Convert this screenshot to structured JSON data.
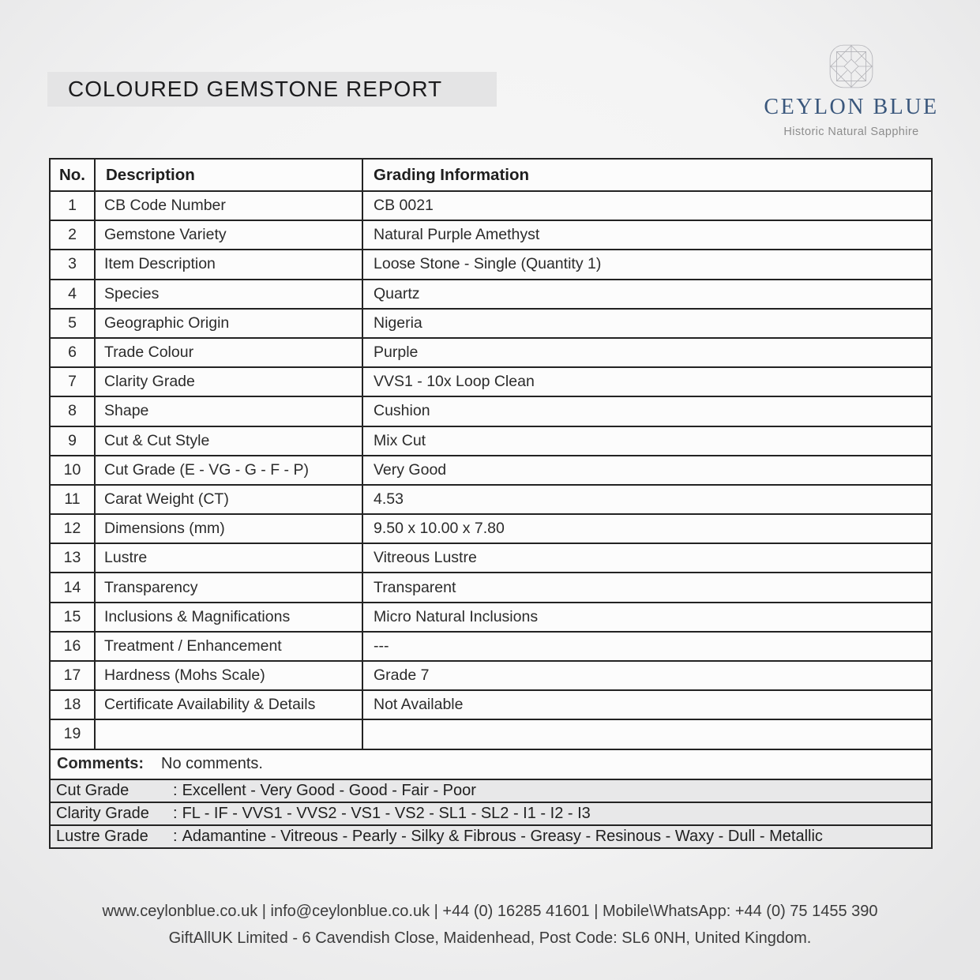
{
  "header": {
    "title": "COLOURED GEMSTONE REPORT"
  },
  "logo": {
    "name": "CEYLON BLUE",
    "tagline": "Historic Natural Sapphire",
    "brand_color": "#3a577c",
    "icon": "gem-wireframe-icon"
  },
  "table": {
    "headers": [
      "No.",
      "Description",
      "Grading Information"
    ],
    "rows": [
      {
        "no": "1",
        "description": "CB Code Number",
        "value": "CB 0021"
      },
      {
        "no": "2",
        "description": "Gemstone Variety",
        "value": "Natural Purple Amethyst"
      },
      {
        "no": "3",
        "description": "Item Description",
        "value": "Loose Stone - Single (Quantity 1)"
      },
      {
        "no": "4",
        "description": "Species",
        "value": "Quartz"
      },
      {
        "no": "5",
        "description": "Geographic Origin",
        "value": "Nigeria"
      },
      {
        "no": "6",
        "description": "Trade Colour",
        "value": "Purple"
      },
      {
        "no": "7",
        "description": "Clarity Grade",
        "value": "VVS1 - 10x Loop Clean"
      },
      {
        "no": "8",
        "description": "Shape",
        "value": "Cushion"
      },
      {
        "no": "9",
        "description": "Cut & Cut Style",
        "value": "Mix Cut"
      },
      {
        "no": "10",
        "description": "Cut Grade (E - VG - G - F - P)",
        "value": "Very Good"
      },
      {
        "no": "11",
        "description": "Carat Weight (CT)",
        "value": "4.53"
      },
      {
        "no": "12",
        "description": "Dimensions (mm)",
        "value": "9.50 x 10.00 x 7.80"
      },
      {
        "no": "13",
        "description": "Lustre",
        "value": "Vitreous Lustre"
      },
      {
        "no": "14",
        "description": "Transparency",
        "value": "Transparent"
      },
      {
        "no": "15",
        "description": "Inclusions & Magnifications",
        "value": "Micro Natural Inclusions"
      },
      {
        "no": "16",
        "description": "Treatment / Enhancement",
        "value": "---"
      },
      {
        "no": "17",
        "description": "Hardness (Mohs Scale)",
        "value": "Grade 7"
      },
      {
        "no": "18",
        "description": "Certificate Availability & Details",
        "value": "Not Available"
      },
      {
        "no": "19",
        "description": "",
        "value": ""
      }
    ]
  },
  "comments": {
    "label": "Comments:",
    "text": "No comments."
  },
  "grade_keys": [
    {
      "label": "Cut Grade",
      "separator": ":",
      "value": "Excellent - Very Good - Good - Fair - Poor"
    },
    {
      "label": "Clarity Grade",
      "separator": ":",
      "value": "FL - IF - VVS1 - VVS2 - VS1 - VS2 - SL1 - SL2 - I1 - I2 - I3"
    },
    {
      "label": "Lustre Grade",
      "separator": ":",
      "value": "Adamantine - Vitreous - Pearly - Silky & Fibrous - Greasy - Resinous - Waxy - Dull - Metallic"
    }
  ],
  "footer": {
    "contact_line": "www.ceylonblue.co.uk | info@ceylonblue.co.uk | +44 (0) 16285 41601 | Mobile\\WhatsApp: +44 (0) 75 1455 390",
    "address_line": "GiftAllUK Limited - 6 Cavendish Close, Maidenhead, Post Code: SL6 0NH, United Kingdom."
  }
}
